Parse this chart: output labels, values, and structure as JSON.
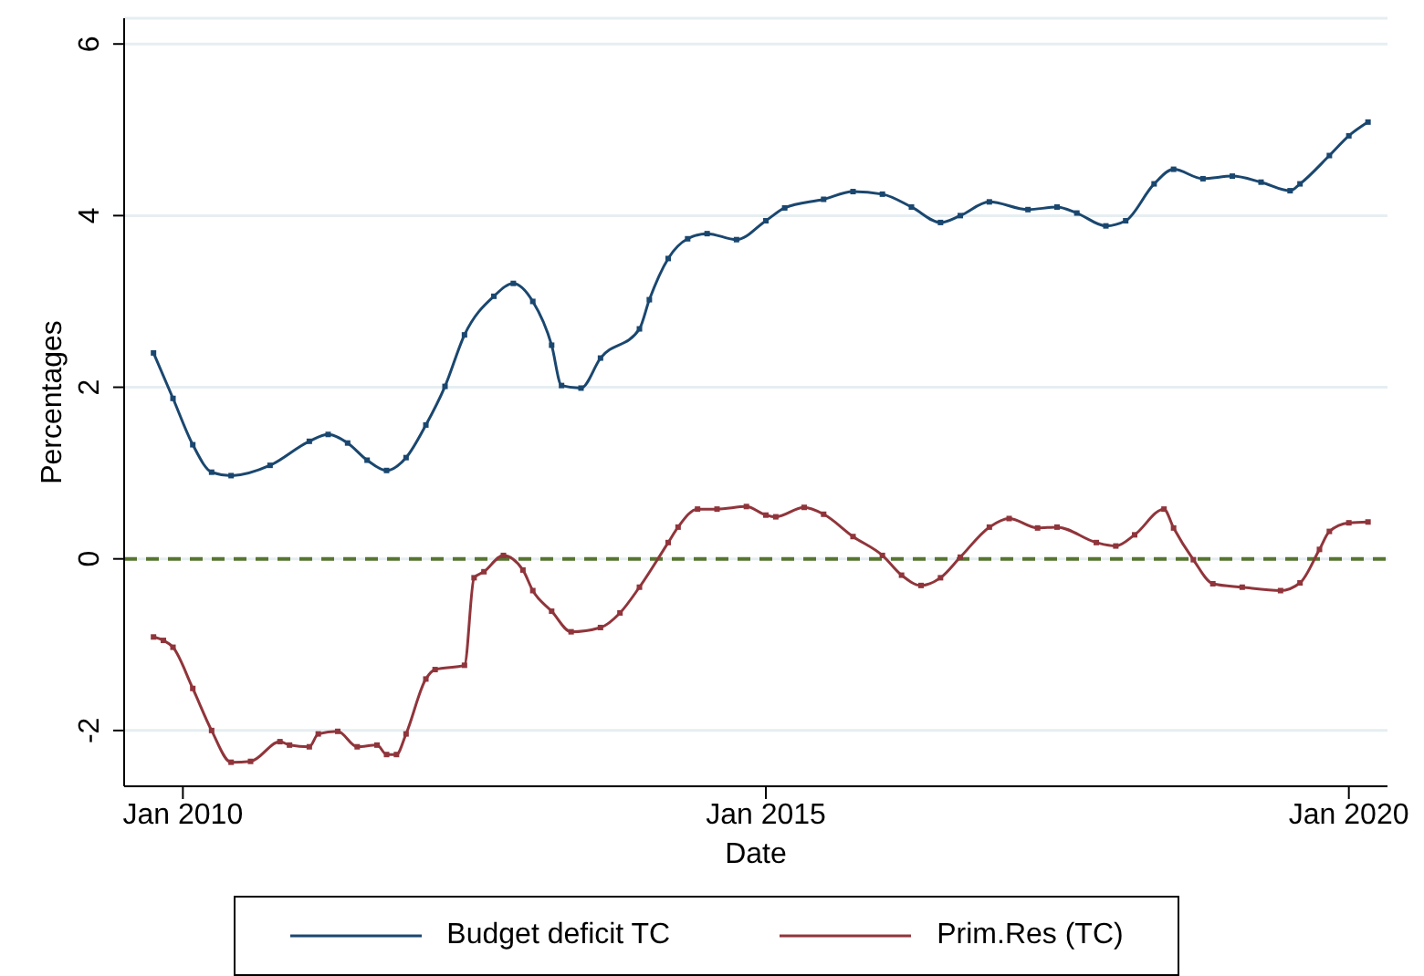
{
  "chart_data": {
    "type": "line",
    "xlabel": "Date",
    "ylabel": "Percentages",
    "xlim": [
      "2009-07",
      "2020-05"
    ],
    "xticks": [
      {
        "value": "2010-01",
        "label": "Jan 2010"
      },
      {
        "value": "2015-01",
        "label": "Jan 2015"
      },
      {
        "value": "2020-01",
        "label": "Jan 2020"
      }
    ],
    "ylim": [
      -2.65,
      6.3
    ],
    "yticks": [
      -2,
      0,
      2,
      4,
      6
    ],
    "grid": "y",
    "legend": "bottom",
    "marker": "square",
    "line_style": "solid",
    "ref_lines": [
      {
        "axis": "y",
        "value": 0,
        "color": "#55752f",
        "line_style": "dashed"
      }
    ],
    "series": [
      {
        "name": "Budget deficit TC",
        "color": "#1a476f",
        "x": [
          "2009-10",
          "2009-12",
          "2010-02",
          "2010-04",
          "2010-06",
          "2010-10",
          "2011-02",
          "2011-04",
          "2011-06",
          "2011-08",
          "2011-10",
          "2011-12",
          "2012-02",
          "2012-04",
          "2012-06",
          "2012-09",
          "2012-11",
          "2013-01",
          "2013-03",
          "2013-04",
          "2013-06",
          "2013-08",
          "2013-12",
          "2014-01",
          "2014-03",
          "2014-05",
          "2014-07",
          "2014-10",
          "2015-01",
          "2015-03",
          "2015-07",
          "2015-10",
          "2016-01",
          "2016-04",
          "2016-07",
          "2016-09",
          "2016-12",
          "2017-04",
          "2017-07",
          "2017-09",
          "2017-12",
          "2018-02",
          "2018-05",
          "2018-07",
          "2018-10",
          "2019-01",
          "2019-04",
          "2019-07",
          "2019-08",
          "2019-11",
          "2020-01",
          "2020-03"
        ],
        "values": [
          2.4,
          1.87,
          1.33,
          1.01,
          0.97,
          1.09,
          1.37,
          1.45,
          1.35,
          1.15,
          1.03,
          1.18,
          1.56,
          2.01,
          2.61,
          3.06,
          3.21,
          3.0,
          2.49,
          2.02,
          1.99,
          2.34,
          2.68,
          3.02,
          3.5,
          3.73,
          3.79,
          3.72,
          3.94,
          4.09,
          4.19,
          4.28,
          4.25,
          4.1,
          3.92,
          4.0,
          4.16,
          4.07,
          4.1,
          4.03,
          3.88,
          3.94,
          4.37,
          4.54,
          4.43,
          4.46,
          4.39,
          4.29,
          4.37,
          4.7,
          4.93,
          5.09
        ]
      },
      {
        "name": "Prim.Res (TC)",
        "color": "#90353b",
        "x": [
          "2009-10",
          "2009-11",
          "2009-12",
          "2010-02",
          "2010-04",
          "2010-06",
          "2010-08",
          "2010-11",
          "2010-12",
          "2011-02",
          "2011-03",
          "2011-05",
          "2011-07",
          "2011-09",
          "2011-10",
          "2011-11",
          "2011-12",
          "2012-02",
          "2012-03",
          "2012-06",
          "2012-07",
          "2012-08",
          "2012-10",
          "2012-12",
          "2013-01",
          "2013-03",
          "2013-05",
          "2013-08",
          "2013-10",
          "2013-12",
          "2014-03",
          "2014-04",
          "2014-06",
          "2014-08",
          "2014-11",
          "2015-01",
          "2015-02",
          "2015-05",
          "2015-07",
          "2015-10",
          "2016-01",
          "2016-03",
          "2016-05",
          "2016-07",
          "2016-09",
          "2016-12",
          "2017-02",
          "2017-05",
          "2017-07",
          "2017-11",
          "2018-01",
          "2018-03",
          "2018-06",
          "2018-07",
          "2018-09",
          "2018-11",
          "2019-02",
          "2019-06",
          "2019-08",
          "2019-10",
          "2019-11",
          "2020-01",
          "2020-03"
        ],
        "values": [
          -0.91,
          -0.95,
          -1.03,
          -1.51,
          -2.0,
          -2.37,
          -2.36,
          -2.13,
          -2.17,
          -2.19,
          -2.04,
          -2.01,
          -2.19,
          -2.17,
          -2.28,
          -2.28,
          -2.04,
          -1.4,
          -1.29,
          -1.24,
          -0.22,
          -0.15,
          0.04,
          -0.13,
          -0.37,
          -0.61,
          -0.85,
          -0.8,
          -0.63,
          -0.33,
          0.19,
          0.37,
          0.58,
          0.58,
          0.61,
          0.51,
          0.49,
          0.6,
          0.52,
          0.26,
          0.04,
          -0.19,
          -0.31,
          -0.22,
          0.02,
          0.37,
          0.47,
          0.36,
          0.37,
          0.19,
          0.15,
          0.28,
          0.58,
          0.36,
          -0.01,
          -0.29,
          -0.33,
          -0.37,
          -0.28,
          0.11,
          0.32,
          0.42,
          0.43
        ]
      }
    ]
  }
}
